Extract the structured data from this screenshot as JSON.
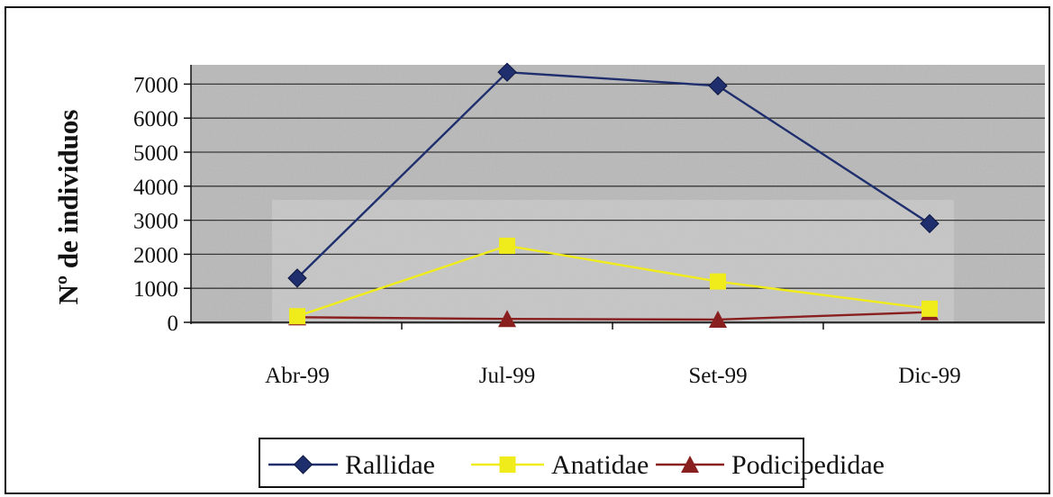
{
  "chart_data": {
    "type": "line",
    "categories": [
      "Abr-99",
      "Jul-99",
      "Set-99",
      "Dic-99"
    ],
    "series": [
      {
        "name": "Rallidae",
        "values": [
          1300,
          7350,
          6950,
          2900
        ],
        "color": "#1f2f6e",
        "marker": "diamond"
      },
      {
        "name": "Anatidae",
        "values": [
          180,
          2250,
          1200,
          400
        ],
        "color": "#f0ec1c",
        "marker": "square"
      },
      {
        "name": "Podicipedidae",
        "values": [
          150,
          100,
          80,
          300
        ],
        "color": "#8a1f1f",
        "marker": "triangle"
      }
    ],
    "title": "",
    "xlabel": "",
    "ylabel": "Nº de individuos",
    "yticks": [
      0,
      1000,
      2000,
      3000,
      4000,
      5000,
      6000,
      7000
    ],
    "ylim": [
      0,
      7600
    ],
    "grid": true,
    "legend_position": "bottom",
    "background_color": "#b9b9b9"
  }
}
